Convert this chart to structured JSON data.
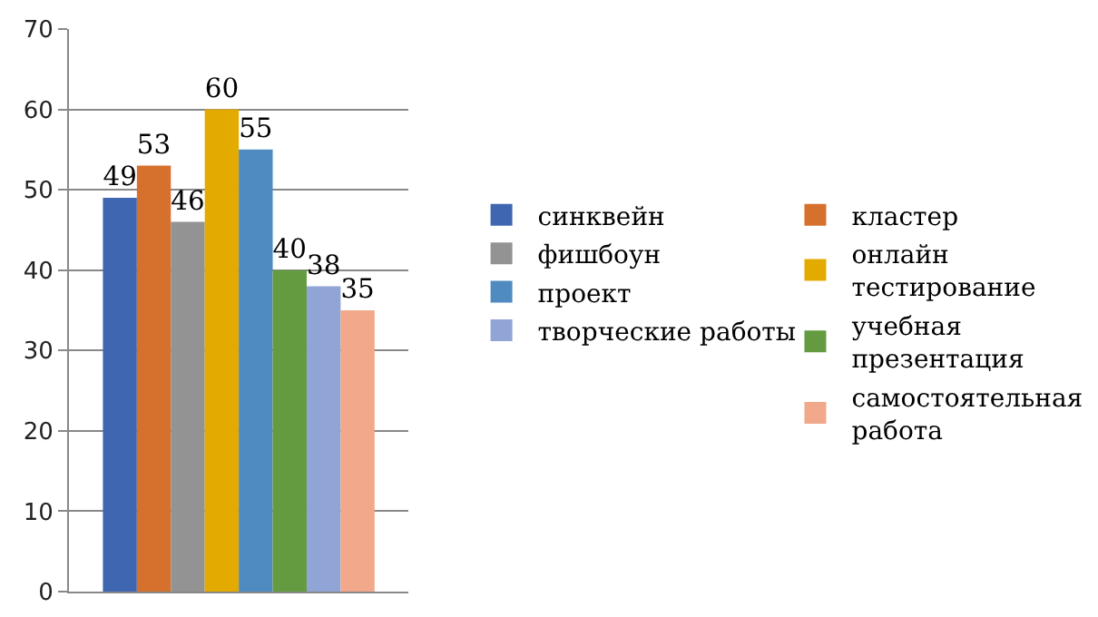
{
  "chart_data": {
    "type": "bar",
    "categories": [
      null
    ],
    "series": [
      {
        "name": "синквейн",
        "color": "#3f67b1",
        "values": [
          49
        ]
      },
      {
        "name": "кластер",
        "color": "#d6702d",
        "values": [
          53
        ]
      },
      {
        "name": "фишбоун",
        "color": "#939393",
        "values": [
          46
        ]
      },
      {
        "name": "онлайн тестирование",
        "color": "#e3aa00",
        "values": [
          60
        ]
      },
      {
        "name": "проект",
        "color": "#4f8bc0",
        "values": [
          55
        ]
      },
      {
        "name": "учебная презентация",
        "color": "#649b40",
        "values": [
          40
        ]
      },
      {
        "name": "творческие работы",
        "color": "#90a4d5",
        "values": [
          38
        ]
      },
      {
        "name": "самостоятельная работа",
        "color": "#f1a88b",
        "values": [
          35
        ]
      }
    ],
    "ylim": [
      0,
      70
    ],
    "yticks": [
      0,
      10,
      20,
      30,
      40,
      50,
      60,
      70
    ],
    "grid": "y",
    "legend": "right",
    "data_labels": true
  }
}
